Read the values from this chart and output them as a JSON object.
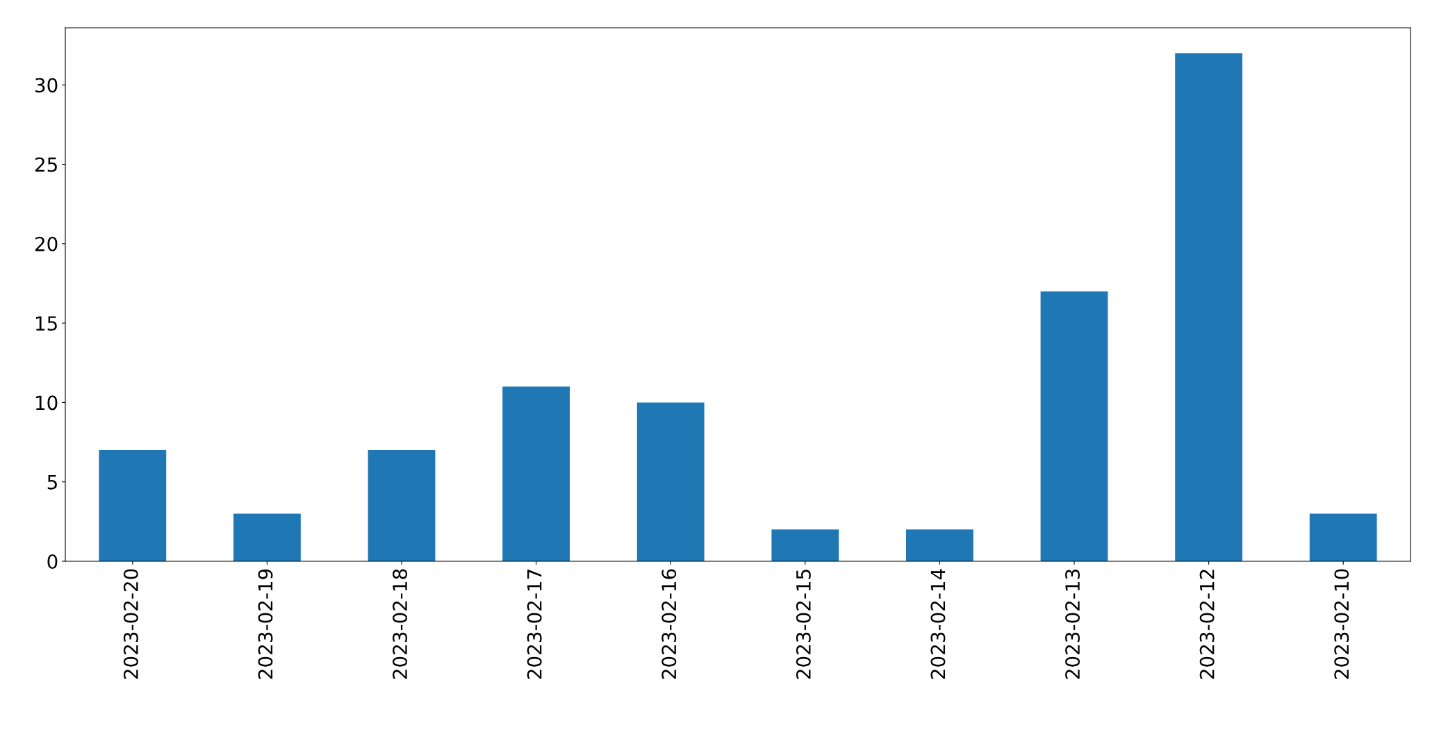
{
  "chart_data": {
    "type": "bar",
    "categories": [
      "2023-02-20",
      "2023-02-19",
      "2023-02-18",
      "2023-02-17",
      "2023-02-16",
      "2023-02-15",
      "2023-02-14",
      "2023-02-13",
      "2023-02-12",
      "2023-02-10"
    ],
    "values": [
      7,
      3,
      7,
      11,
      10,
      2,
      2,
      17,
      32,
      3
    ],
    "color": "#1f77b4",
    "ylim": [
      0,
      33.6
    ],
    "yticks": [
      0,
      5,
      10,
      15,
      20,
      25,
      30
    ],
    "grid": false,
    "legend": false
  }
}
